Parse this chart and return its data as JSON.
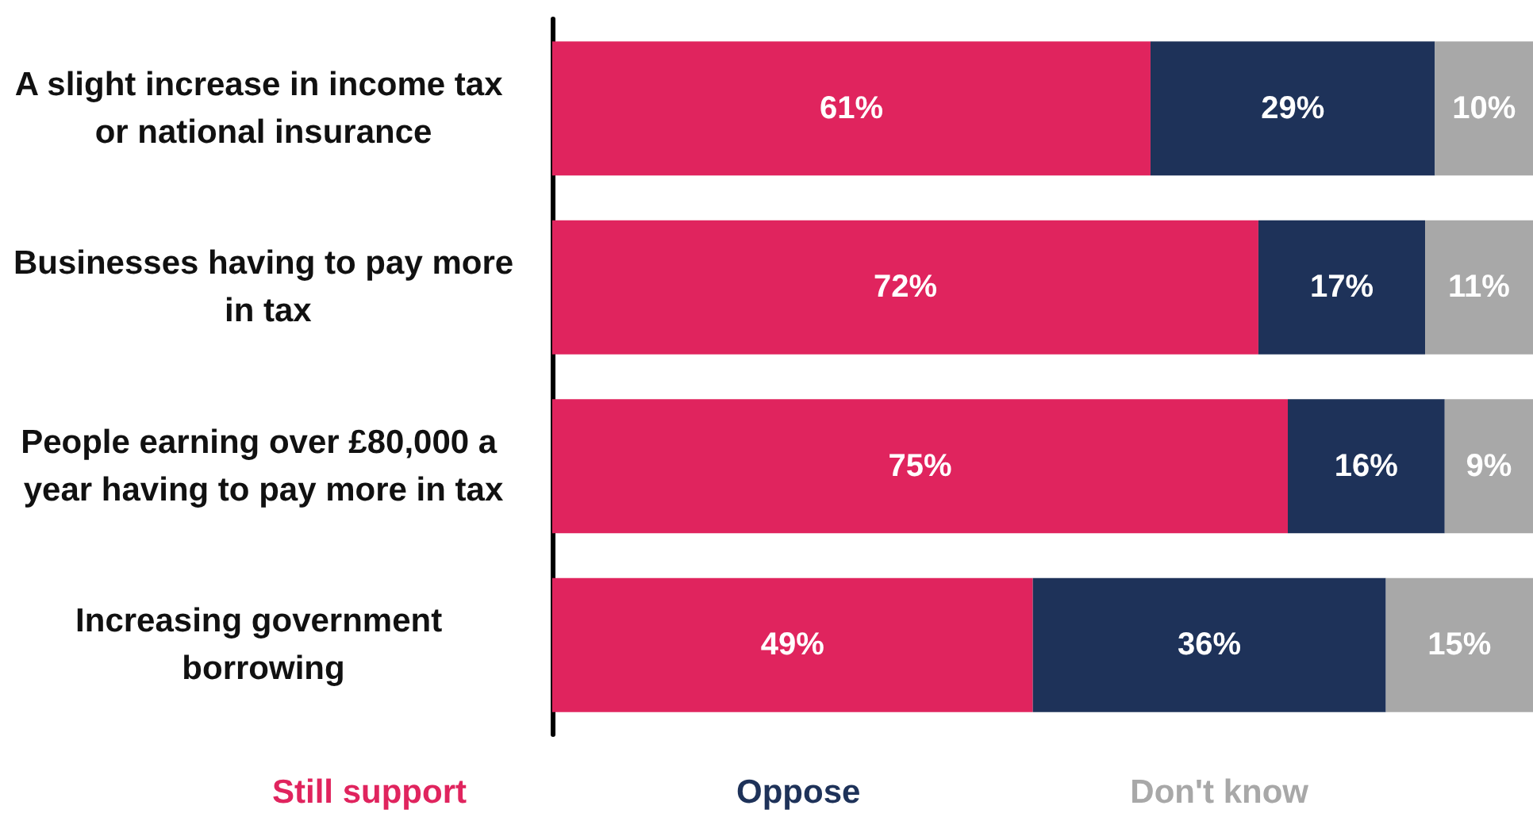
{
  "chart_data": {
    "type": "bar",
    "orientation": "horizontal",
    "stacked": true,
    "legend": "bottom",
    "categories": [
      "A slight increase in income tax or national insurance",
      "Businesses having to pay more in tax",
      "People earning over £80,000 a year having to pay more in tax",
      "Increasing government borrowing"
    ],
    "series": [
      {
        "name": "Still support",
        "color": "#e0245e",
        "values": [
          61,
          72,
          75,
          49
        ],
        "value_labels": [
          "61%",
          "72%",
          "75%",
          "49%"
        ]
      },
      {
        "name": "Oppose",
        "color": "#1e3259",
        "values": [
          29,
          17,
          16,
          36
        ],
        "value_labels": [
          "29%",
          "17%",
          "16%",
          "36%"
        ]
      },
      {
        "name": "Don't know",
        "color": "#a8a8a8",
        "values": [
          10,
          11,
          9,
          15
        ],
        "value_labels": [
          "10%",
          "11%",
          "9%",
          "15%"
        ]
      }
    ]
  }
}
